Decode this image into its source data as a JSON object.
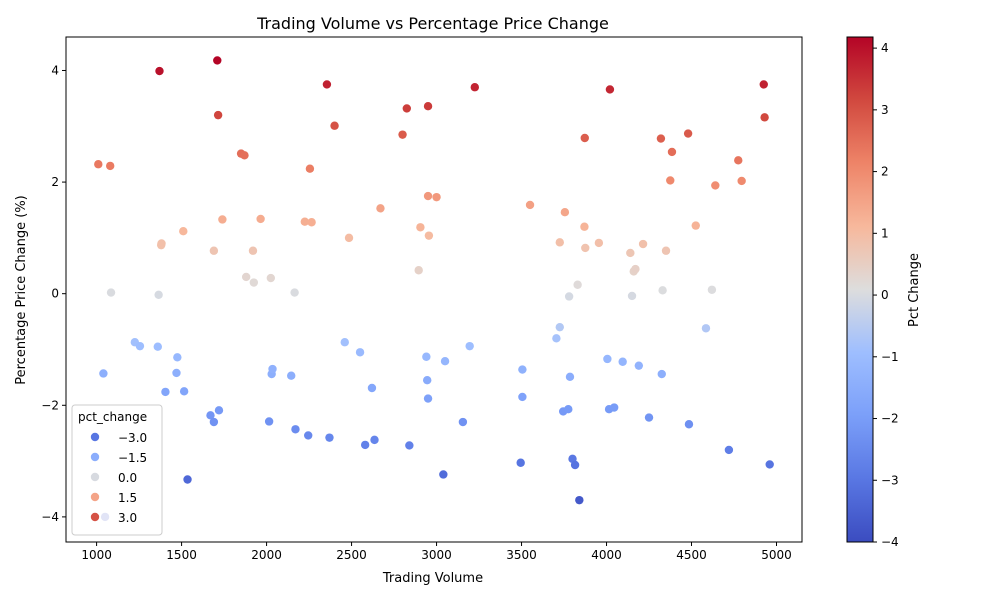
{
  "chart_data": {
    "type": "scatter",
    "title": "Trading Volume vs Percentage Price Change",
    "xlabel": "Trading Volume",
    "ylabel": "Percentage Price Change (%)",
    "xlim": [
      820,
      5150
    ],
    "ylim": [
      -4.45,
      4.6
    ],
    "xticks": [
      1000,
      1500,
      2000,
      2500,
      3000,
      3500,
      4000,
      4500,
      5000
    ],
    "xtick_labels": [
      "1000",
      "1500",
      "2000",
      "2500",
      "3000",
      "3500",
      "4000",
      "4500",
      "5000"
    ],
    "yticks": [
      -4,
      -2,
      0,
      2,
      4
    ],
    "ytick_labels": [
      "−4",
      "−2",
      "0",
      "2",
      "4"
    ],
    "grid": false,
    "colormap": "coolwarm",
    "colorbar": {
      "label": "Pct Change",
      "range": [
        -4.0,
        4.18
      ],
      "ticks": [
        -4,
        -3,
        -2,
        -1,
        0,
        1,
        2,
        3,
        4
      ],
      "tick_labels": [
        "−4",
        "−3",
        "−2",
        "−1",
        "0",
        "1",
        "2",
        "3",
        "4"
      ]
    },
    "legend": {
      "title": "pct_change",
      "placement": "lower-left",
      "entries": [
        {
          "label": "−3.0",
          "value": -3.0
        },
        {
          "label": "−1.5",
          "value": -1.5
        },
        {
          "label": "0.0",
          "value": 0.0
        },
        {
          "label": "1.5",
          "value": 1.5
        },
        {
          "label": "3.0",
          "value": 3.0
        }
      ]
    },
    "points": [
      {
        "x": 1010,
        "y": 2.32
      },
      {
        "x": 1080,
        "y": 2.29
      },
      {
        "x": 1085,
        "y": 0.02
      },
      {
        "x": 1040,
        "y": -1.43
      },
      {
        "x": 1050,
        "y": -4.0
      },
      {
        "x": 1225,
        "y": -0.87
      },
      {
        "x": 1255,
        "y": -0.94
      },
      {
        "x": 1370,
        "y": 3.99
      },
      {
        "x": 1365,
        "y": -0.02
      },
      {
        "x": 1380,
        "y": 0.87
      },
      {
        "x": 1382,
        "y": 0.9
      },
      {
        "x": 1360,
        "y": -0.95
      },
      {
        "x": 1405,
        "y": -1.76
      },
      {
        "x": 1470,
        "y": -1.42
      },
      {
        "x": 1475,
        "y": -1.14
      },
      {
        "x": 1510,
        "y": 1.12
      },
      {
        "x": 1515,
        "y": -1.75
      },
      {
        "x": 1535,
        "y": -3.33
      },
      {
        "x": 1670,
        "y": -2.18
      },
      {
        "x": 1690,
        "y": -2.3
      },
      {
        "x": 1690,
        "y": 0.77
      },
      {
        "x": 1710,
        "y": 4.18
      },
      {
        "x": 1715,
        "y": 3.2
      },
      {
        "x": 1720,
        "y": -2.09
      },
      {
        "x": 1740,
        "y": 1.33
      },
      {
        "x": 1850,
        "y": 2.51
      },
      {
        "x": 1870,
        "y": 2.48
      },
      {
        "x": 1880,
        "y": 0.3
      },
      {
        "x": 1920,
        "y": 0.77
      },
      {
        "x": 1925,
        "y": 0.2
      },
      {
        "x": 1965,
        "y": 1.34
      },
      {
        "x": 2015,
        "y": -2.29
      },
      {
        "x": 2025,
        "y": 0.28
      },
      {
        "x": 2030,
        "y": -1.44
      },
      {
        "x": 2035,
        "y": -1.35
      },
      {
        "x": 2145,
        "y": -1.47
      },
      {
        "x": 2165,
        "y": 0.02
      },
      {
        "x": 2170,
        "y": -2.43
      },
      {
        "x": 2225,
        "y": 1.29
      },
      {
        "x": 2245,
        "y": -2.54
      },
      {
        "x": 2255,
        "y": 2.24
      },
      {
        "x": 2265,
        "y": 1.28
      },
      {
        "x": 2355,
        "y": 3.75
      },
      {
        "x": 2370,
        "y": -2.58
      },
      {
        "x": 2400,
        "y": 3.01
      },
      {
        "x": 2460,
        "y": -0.87
      },
      {
        "x": 2485,
        "y": 1.0
      },
      {
        "x": 2550,
        "y": -1.05
      },
      {
        "x": 2580,
        "y": -2.71
      },
      {
        "x": 2620,
        "y": -1.69
      },
      {
        "x": 2635,
        "y": -2.62
      },
      {
        "x": 2670,
        "y": 1.53
      },
      {
        "x": 2800,
        "y": 2.85
      },
      {
        "x": 2825,
        "y": 3.32
      },
      {
        "x": 2840,
        "y": -2.72
      },
      {
        "x": 2895,
        "y": 0.42
      },
      {
        "x": 2905,
        "y": 1.19
      },
      {
        "x": 2940,
        "y": -1.13
      },
      {
        "x": 2945,
        "y": -1.55
      },
      {
        "x": 2950,
        "y": 3.36
      },
      {
        "x": 2950,
        "y": 1.75
      },
      {
        "x": 2950,
        "y": -1.88
      },
      {
        "x": 2955,
        "y": 1.04
      },
      {
        "x": 3000,
        "y": 1.73
      },
      {
        "x": 3040,
        "y": -3.24
      },
      {
        "x": 3050,
        "y": -1.21
      },
      {
        "x": 3155,
        "y": -2.3
      },
      {
        "x": 3195,
        "y": -0.94
      },
      {
        "x": 3225,
        "y": 3.7
      },
      {
        "x": 3495,
        "y": -3.03
      },
      {
        "x": 3505,
        "y": -1.36
      },
      {
        "x": 3505,
        "y": -1.85
      },
      {
        "x": 3550,
        "y": 1.59
      },
      {
        "x": 3705,
        "y": -0.8
      },
      {
        "x": 3725,
        "y": 0.92
      },
      {
        "x": 3725,
        "y": -0.6
      },
      {
        "x": 3745,
        "y": -2.11
      },
      {
        "x": 3755,
        "y": 1.46
      },
      {
        "x": 3775,
        "y": -2.07
      },
      {
        "x": 3780,
        "y": -0.05
      },
      {
        "x": 3785,
        "y": -1.49
      },
      {
        "x": 3800,
        "y": -2.96
      },
      {
        "x": 3815,
        "y": -3.07
      },
      {
        "x": 3830,
        "y": 0.16
      },
      {
        "x": 3840,
        "y": -3.7
      },
      {
        "x": 3870,
        "y": 1.2
      },
      {
        "x": 3872,
        "y": 2.79
      },
      {
        "x": 3875,
        "y": 0.82
      },
      {
        "x": 3955,
        "y": 0.91
      },
      {
        "x": 4005,
        "y": -1.17
      },
      {
        "x": 4015,
        "y": -2.07
      },
      {
        "x": 4020,
        "y": 3.66
      },
      {
        "x": 4045,
        "y": -2.04
      },
      {
        "x": 4095,
        "y": -1.22
      },
      {
        "x": 4140,
        "y": 0.73
      },
      {
        "x": 4150,
        "y": -0.04
      },
      {
        "x": 4160,
        "y": 0.4
      },
      {
        "x": 4170,
        "y": 0.44
      },
      {
        "x": 4190,
        "y": -1.29
      },
      {
        "x": 4215,
        "y": 0.89
      },
      {
        "x": 4250,
        "y": -2.22
      },
      {
        "x": 4320,
        "y": 2.78
      },
      {
        "x": 4325,
        "y": -1.44
      },
      {
        "x": 4330,
        "y": 0.06
      },
      {
        "x": 4350,
        "y": 0.77
      },
      {
        "x": 4375,
        "y": 2.03
      },
      {
        "x": 4385,
        "y": 2.54
      },
      {
        "x": 4480,
        "y": 2.87
      },
      {
        "x": 4485,
        "y": -2.34
      },
      {
        "x": 4525,
        "y": 1.22
      },
      {
        "x": 4585,
        "y": -0.62
      },
      {
        "x": 4620,
        "y": 0.07
      },
      {
        "x": 4640,
        "y": 1.94
      },
      {
        "x": 4720,
        "y": -2.8
      },
      {
        "x": 4775,
        "y": 2.39
      },
      {
        "x": 4795,
        "y": 2.02
      },
      {
        "x": 4925,
        "y": 3.75
      },
      {
        "x": 4930,
        "y": 3.16
      },
      {
        "x": 4960,
        "y": -3.06
      }
    ]
  }
}
